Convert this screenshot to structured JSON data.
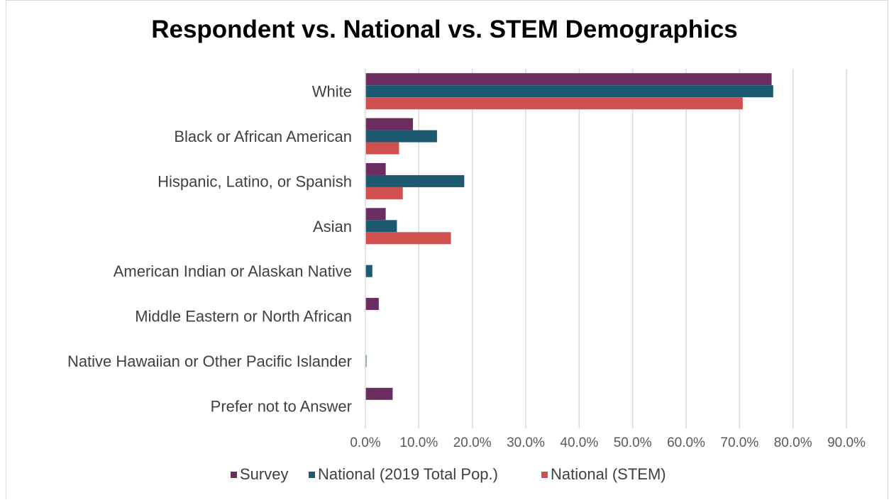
{
  "chart_data": {
    "type": "bar",
    "orientation": "horizontal",
    "title": "Respondent vs. National vs. STEM Demographics",
    "xlabel": "",
    "ylabel": "",
    "categories": [
      "White",
      "Black or African American",
      "Hispanic, Latino, or Spanish",
      "Asian",
      "American Indian or Alaskan Native",
      "Middle Eastern or North African",
      "Native Hawaiian or Other Pacific Islander",
      "Prefer not to Answer"
    ],
    "series": [
      {
        "name": "Survey",
        "color": "#6b2c5f",
        "values": [
          76.0,
          8.9,
          3.8,
          3.8,
          0.0,
          2.5,
          0.0,
          5.1
        ]
      },
      {
        "name": "National (2019 Total Pop.)",
        "color": "#1d5a71",
        "values": [
          76.3,
          13.4,
          18.5,
          5.9,
          1.3,
          0.0,
          0.2,
          0.0
        ]
      },
      {
        "name": "National (STEM)",
        "color": "#d05050",
        "values": [
          70.6,
          6.3,
          7.0,
          16.0,
          0.0,
          0.0,
          0.0,
          0.0
        ]
      }
    ],
    "xlim": [
      0,
      90
    ],
    "xticks": [
      "0.0%",
      "10.0%",
      "20.0%",
      "30.0%",
      "40.0%",
      "50.0%",
      "60.0%",
      "70.0%",
      "80.0%",
      "90.0%"
    ],
    "grid": true,
    "legend": "bottom"
  }
}
